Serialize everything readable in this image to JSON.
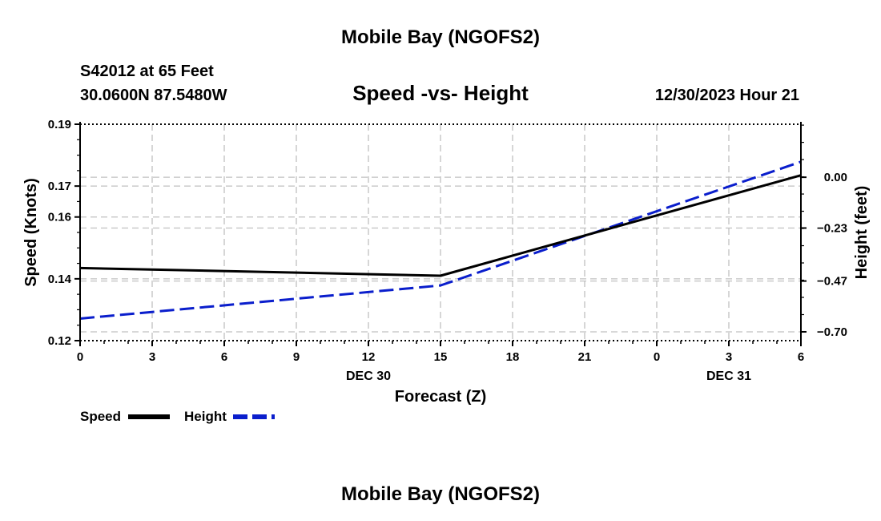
{
  "header": {
    "title": "Mobile Bay (NGOFS2)",
    "station": "S42012 at 65 Feet",
    "coords": "30.0600N  87.5480W",
    "timestamp": "12/30/2023 Hour 21",
    "footer_title": "Mobile Bay (NGOFS2)"
  },
  "legend": {
    "speed_label": "Speed",
    "height_label": "Height"
  },
  "colors": {
    "speed": "#000000",
    "height": "#0a1ecc",
    "grid": "#c0c0c0"
  },
  "chart_data": {
    "type": "line",
    "title": "Speed -vs- Height",
    "xlabel": "Forecast (Z)",
    "ylabel": "Speed (Knots)",
    "y2label": "Height (feet)",
    "x": [
      0,
      3,
      6,
      9,
      12,
      15,
      18,
      21,
      24,
      27,
      30
    ],
    "xlim": [
      0,
      30
    ],
    "x_tick_labels": [
      "0",
      "3",
      "6",
      "9",
      "12",
      "15",
      "18",
      "21",
      "0",
      "3",
      "6"
    ],
    "date_labels": [
      {
        "x": 12,
        "label": "DEC 30"
      },
      {
        "x": 27,
        "label": "DEC 31"
      }
    ],
    "ylim": [
      0.12,
      0.19
    ],
    "y_ticks": [
      0.12,
      0.14,
      0.16,
      0.17,
      0.19
    ],
    "y2lim": [
      -0.74,
      0.24
    ],
    "y2_ticks": [
      -0.7,
      -0.47,
      -0.23,
      0.0
    ],
    "y2_tick_labels": [
      "−0.70",
      "−0.47",
      "−0.23",
      "0.00"
    ],
    "grid": true,
    "legend_position": "bottom-left",
    "series": [
      {
        "name": "Speed",
        "axis": "left",
        "style": "solid",
        "x": [
          0,
          15,
          30
        ],
        "values": [
          0.1435,
          0.141,
          0.1735
        ]
      },
      {
        "name": "Height",
        "axis": "right",
        "style": "dashed",
        "x": [
          0,
          15,
          30
        ],
        "values": [
          -0.64,
          -0.49,
          0.07
        ]
      }
    ]
  }
}
